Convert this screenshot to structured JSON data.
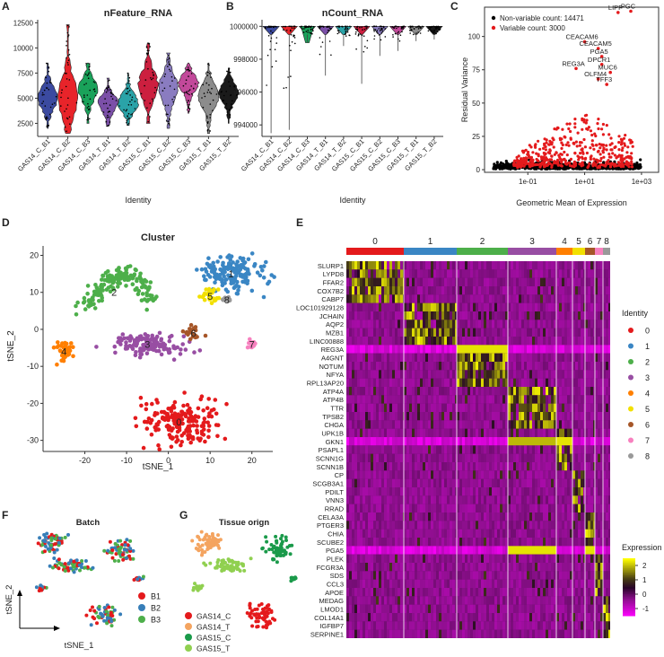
{
  "palette": {
    "samples": [
      "#3b4aa0",
      "#e8242a",
      "#1aa25a",
      "#7b4fa8",
      "#2aa3a8",
      "#cc1f3f",
      "#8a7cc0",
      "#c2499a",
      "#8c8c8c",
      "#1a1a1a"
    ],
    "clusters": [
      "#e41a1c",
      "#3a86c4",
      "#4daf4a",
      "#984ea3",
      "#ff7f00",
      "#f2e000",
      "#a65628",
      "#f781bf",
      "#999999"
    ],
    "batch": [
      "#e41a1c",
      "#377eb8",
      "#4daf4a"
    ],
    "tissue": [
      "#e41a1c",
      "#f4a460",
      "#1a9a4a",
      "#90d050"
    ]
  },
  "chart_data": [
    {
      "id": "A",
      "panel_label": "A",
      "type": "violin",
      "title": "nFeature_RNA",
      "xlabel": "Identity",
      "ylabel": "",
      "categories": [
        "GAS14_C_B1",
        "GAS14_C_B2",
        "GAS14_C_B3",
        "GAS14_T_B1",
        "GAS14_T_B2",
        "GAS15_C_B1",
        "GAS15_C_B2",
        "GAS15_C_B3",
        "GAS15_T_B1",
        "GAS15_T_B2"
      ],
      "yticks": [
        2500,
        5000,
        7500,
        10000,
        12500
      ],
      "ylim": [
        1200,
        12800
      ],
      "medians": [
        5000,
        5000,
        5800,
        4500,
        4500,
        6200,
        6000,
        6500,
        5200,
        5500
      ],
      "ranges": [
        [
          2000,
          8500
        ],
        [
          1500,
          12300
        ],
        [
          2500,
          8500
        ],
        [
          2200,
          7000
        ],
        [
          2300,
          7500
        ],
        [
          2500,
          10500
        ],
        [
          2000,
          9500
        ],
        [
          3500,
          8500
        ],
        [
          1500,
          8500
        ],
        [
          2500,
          8000
        ]
      ]
    },
    {
      "id": "B",
      "panel_label": "B",
      "type": "violin",
      "title": "nCount_RNA",
      "xlabel": "Identity",
      "ylabel": "",
      "categories": [
        "GAS14_C_B1",
        "GAS14_C_B2",
        "GAS14_C_B3",
        "GAS14_T_B1",
        "GAS14_T_B2",
        "GAS15_C_B1",
        "GAS15_C_B2",
        "GAS15_C_B3",
        "GAS15_T_B1",
        "GAS15_T_B2"
      ],
      "yticks": [
        994000,
        996000,
        998000,
        1000000
      ],
      "ylim": [
        993300,
        1000400
      ],
      "whisker_min": [
        993500,
        993700,
        999000,
        997000,
        998800,
        996500,
        998200,
        998500,
        999100,
        999200
      ]
    },
    {
      "id": "C",
      "panel_label": "C",
      "type": "scatter",
      "xlabel": "Geometric Mean of Expression",
      "ylabel": "Residual Variance",
      "xscale": "log",
      "xlim": [
        0.003,
        4000
      ],
      "ylim": [
        -2,
        122
      ],
      "xticks": [
        "1e-01",
        "1e+01",
        "1e+03"
      ],
      "xtick_values": [
        0.1,
        10,
        1000
      ],
      "yticks": [
        0,
        25,
        50,
        75,
        100
      ],
      "legend": [
        "Non-variable count: 14471",
        "Variable count: 3000"
      ],
      "highlighted_genes": [
        {
          "name": "PGC",
          "x": 420,
          "y": 119
        },
        {
          "name": "LIPF",
          "x": 150,
          "y": 118
        },
        {
          "name": "CEACAM6",
          "x": 10,
          "y": 96
        },
        {
          "name": "CEACAM5",
          "x": 30,
          "y": 91
        },
        {
          "name": "PGA5",
          "x": 40,
          "y": 85
        },
        {
          "name": "DPCR1",
          "x": 40,
          "y": 79
        },
        {
          "name": "REG3A",
          "x": 5,
          "y": 76
        },
        {
          "name": "MUC6",
          "x": 80,
          "y": 73
        },
        {
          "name": "OLFM4",
          "x": 30,
          "y": 68
        },
        {
          "name": "TFF3",
          "x": 60,
          "y": 64
        }
      ]
    },
    {
      "id": "D",
      "panel_label": "D",
      "type": "scatter",
      "title": "Cluster",
      "xlabel": "tSNE_1",
      "ylabel": "tSNE_2",
      "xlim": [
        -30,
        25
      ],
      "ylim": [
        -33,
        24
      ],
      "xticks": [
        -20,
        -10,
        0,
        10,
        20
      ],
      "yticks": [
        -30,
        -20,
        -10,
        0,
        10,
        20
      ],
      "legend_title": "Identity",
      "legend": [
        "0",
        "1",
        "2",
        "3",
        "4",
        "5",
        "6",
        "7",
        "8"
      ],
      "cluster_centers": [
        {
          "id": "0",
          "x": 2.5,
          "y": -25
        },
        {
          "id": "1",
          "x": 15,
          "y": 15
        },
        {
          "id": "2",
          "x": -13,
          "y": 10
        },
        {
          "id": "3",
          "x": -5,
          "y": -4
        },
        {
          "id": "4",
          "x": -25,
          "y": -6
        },
        {
          "id": "5",
          "x": 10,
          "y": 9
        },
        {
          "id": "6",
          "x": 6,
          "y": -1
        },
        {
          "id": "7",
          "x": 20,
          "y": -4
        },
        {
          "id": "8",
          "x": 14,
          "y": 8
        }
      ]
    },
    {
      "id": "E",
      "panel_label": "E",
      "type": "heatmap",
      "cluster_labels": [
        "0",
        "1",
        "2",
        "3",
        "4",
        "5",
        "6",
        "7",
        "8"
      ],
      "cluster_widths": [
        64,
        59,
        57,
        54,
        18,
        14,
        11,
        9,
        8
      ],
      "genes": [
        "SLURP1",
        "LYPD8",
        "FFAR2",
        "COX7B2",
        "CABP7",
        "LOC101929128",
        "JCHAIN",
        "AQP2",
        "MZB1",
        "LINC00888",
        "REG3A",
        "A4GNT",
        "NOTUM",
        "NFYA",
        "RPL13AP20",
        "ATP4A",
        "ATP4B",
        "TTR",
        "TPSB2",
        "CHGA",
        "UPK1B",
        "GKN1",
        "PSAPL1",
        "SCNN1G",
        "SCNN1B",
        "CP",
        "SCGB3A1",
        "PDILT",
        "VNN3",
        "RRAD",
        "CELA3A",
        "PTGER3",
        "CHIA",
        "SCUBE2",
        "PGA5",
        "PLEK",
        "FCGR3A",
        "SDS",
        "CCL3",
        "APOE",
        "MEDAG",
        "LMOD1",
        "COL14A1",
        "IGFBP7",
        "SERPINE1"
      ],
      "gene_groups": [
        0,
        0,
        0,
        0,
        0,
        1,
        1,
        1,
        1,
        1,
        2,
        2,
        2,
        2,
        2,
        3,
        3,
        3,
        3,
        3,
        4,
        4,
        4,
        4,
        4,
        5,
        5,
        5,
        5,
        5,
        6,
        6,
        6,
        6,
        6,
        7,
        7,
        7,
        7,
        7,
        8,
        8,
        8,
        8,
        8
      ],
      "legend_title_top": "Identity",
      "legend_title_bottom": "Expression",
      "scale_ticks": [
        2,
        1,
        0,
        -1
      ],
      "scale_range": [
        -1.5,
        2.5
      ]
    },
    {
      "id": "F",
      "panel_label": "F",
      "type": "scatter",
      "title": "Batch",
      "xlabel": "tSNE_1",
      "ylabel": "tSNE_2",
      "legend": [
        "B1",
        "B2",
        "B3"
      ]
    },
    {
      "id": "G",
      "panel_label": "G",
      "type": "scatter",
      "title": "Tissue orign",
      "legend": [
        "GAS14_C",
        "GAS14_T",
        "GAS15_C",
        "GAS15_T"
      ]
    }
  ]
}
